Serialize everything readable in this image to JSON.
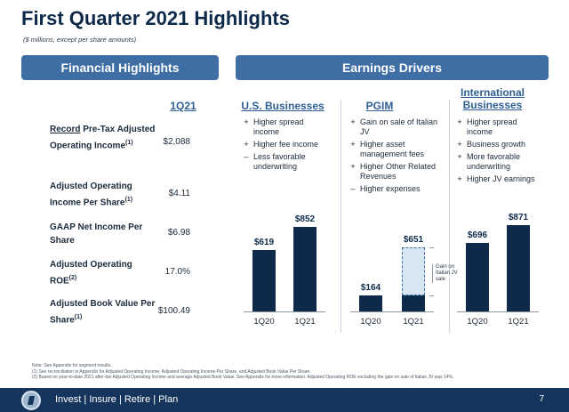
{
  "header": {
    "title": "First Quarter 2021 Highlights",
    "subtitle": "($ millions, except per share amounts)"
  },
  "financial": {
    "banner": "Financial Highlights",
    "column": "1Q21",
    "rows": [
      {
        "prefix": "Record",
        "label": " Pre-Tax Adjusted Operating Income",
        "note": "(1)",
        "value": "$2,088"
      },
      {
        "prefix": "",
        "label": "Adjusted Operating Income Per Share",
        "note": "(1)",
        "value": "$4.11"
      },
      {
        "prefix": "",
        "label": "GAAP Net Income Per Share",
        "note": "",
        "value": "$6.98"
      },
      {
        "prefix": "",
        "label": "Adjusted Operating ROE",
        "note": "(2)",
        "value": "17.0%"
      },
      {
        "prefix": "",
        "label": "Adjusted Book Value Per Share",
        "note": "(1)",
        "value": "$100.49"
      }
    ]
  },
  "earnings": {
    "banner": "Earnings Drivers",
    "segments": [
      {
        "name": "U.S. Businesses",
        "drivers": [
          {
            "sym": "+",
            "text": "Higher spread income"
          },
          {
            "sym": "+",
            "text": "Higher fee income"
          },
          {
            "sym": "–",
            "text": "Less favorable underwriting"
          }
        ]
      },
      {
        "name": "PGIM",
        "drivers": [
          {
            "sym": "+",
            "text": "Gain on sale of Italian JV"
          },
          {
            "sym": "+",
            "text": "Higher asset management fees"
          },
          {
            "sym": "+",
            "text": "Higher Other Related Revenues"
          },
          {
            "sym": "–",
            "text": "Higher expenses"
          }
        ]
      },
      {
        "name": "International Businesses",
        "drivers": [
          {
            "sym": "+",
            "text": "Higher spread income"
          },
          {
            "sym": "+",
            "text": "Business growth"
          },
          {
            "sym": "+",
            "text": "More favorable underwriting"
          },
          {
            "sym": "+",
            "text": "Higher JV earnings"
          }
        ]
      }
    ]
  },
  "chart_data": [
    {
      "type": "bar",
      "categories": [
        "1Q20",
        "1Q21"
      ],
      "values": [
        619,
        852
      ],
      "labels": [
        "$619",
        "$852"
      ]
    },
    {
      "type": "bar",
      "categories": [
        "1Q20",
        "1Q21"
      ],
      "values": [
        164,
        651
      ],
      "labels": [
        "$164",
        "$651"
      ],
      "annotation": "Gain on Italian JV sale"
    },
    {
      "type": "bar",
      "categories": [
        "1Q20",
        "1Q21"
      ],
      "values": [
        696,
        871
      ],
      "labels": [
        "$696",
        "$871"
      ]
    }
  ],
  "footnotes": [
    "Note: See Appendix for segment results.",
    "(1)    See reconciliation in Appendix for Adjusted Operating Income, Adjusted Operating Income Per Share, and Adjusted Book Value Per Share.",
    "(2)    Based on year-to-date 2021 after-tax Adjusted Operating Income and average Adjusted Book Value. See Appendix for more information. Adjusted Operating ROE excluding the gain on sale of Italian JV was 14%."
  ],
  "footer": {
    "tagline": "Invest  |  Insure  |  Retire  |  Plan",
    "page": "7"
  },
  "colors": {
    "navy": "#0d2a4a",
    "banner": "#3e6ea3",
    "footer": "#16355c",
    "accent_text": "#2d5f94"
  }
}
